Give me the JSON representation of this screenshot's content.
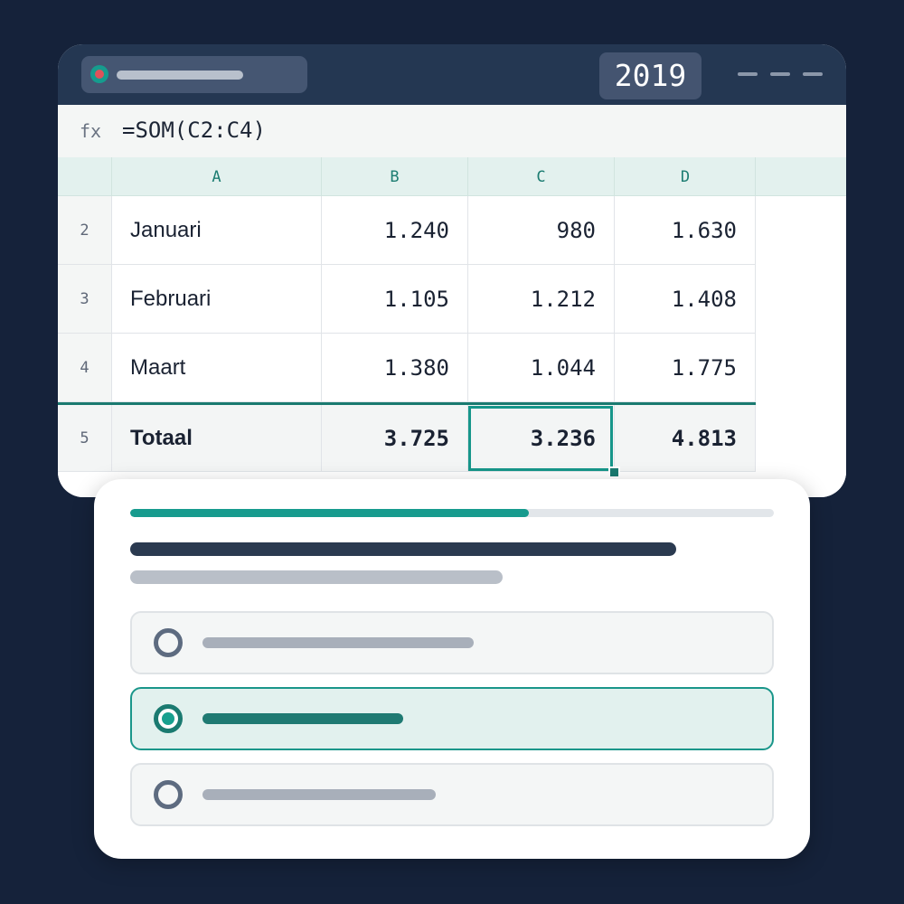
{
  "window": {
    "year": "2019"
  },
  "formula_bar": {
    "fx_label": "fx",
    "formula": "=SOM(C2:C4)"
  },
  "sheet": {
    "columns": [
      "A",
      "B",
      "C",
      "D"
    ],
    "rows": [
      {
        "num": "2",
        "label": "Januari",
        "values": [
          "1.240",
          "980",
          "1.630"
        ]
      },
      {
        "num": "3",
        "label": "Februari",
        "values": [
          "1.105",
          "1.212",
          "1.408"
        ]
      },
      {
        "num": "4",
        "label": "Maart",
        "values": [
          "1.380",
          "1.044",
          "1.775"
        ]
      }
    ],
    "total": {
      "num": "5",
      "label": "Totaal",
      "values": [
        "3.725",
        "3.236",
        "4.813"
      ]
    },
    "selected_cell": "C5"
  },
  "quiz": {
    "progress": 0.62,
    "selected_option": 2,
    "accent_color": "#179b8e"
  }
}
